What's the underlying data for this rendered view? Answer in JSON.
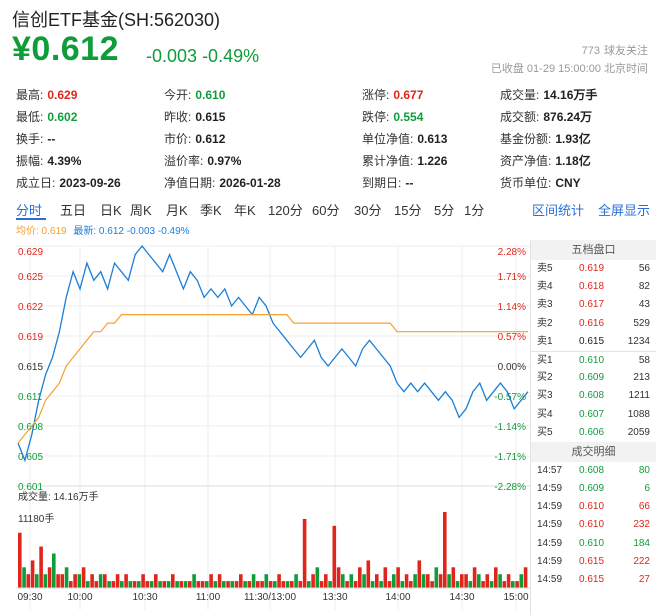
{
  "header": {
    "title": "信创ETF基金(SH:562030)",
    "price": "¥0.612",
    "change": "-0.003",
    "change_pct": "-0.49%",
    "followers_count": "773",
    "followers_label": "球友关注",
    "status": "已收盘  01-29 15:00:00 北京时间"
  },
  "stats": [
    [
      {
        "label": "最高:",
        "value": "0.629",
        "color": "red"
      },
      {
        "label": "今开:",
        "value": "0.610",
        "color": "green"
      },
      {
        "label": "涨停:",
        "value": "0.677",
        "color": "red"
      },
      {
        "label": "成交量:",
        "value": "14.16万手",
        "color": ""
      }
    ],
    [
      {
        "label": "最低:",
        "value": "0.602",
        "color": "green"
      },
      {
        "label": "昨收:",
        "value": "0.615",
        "color": ""
      },
      {
        "label": "跌停:",
        "value": "0.554",
        "color": "green"
      },
      {
        "label": "成交额:",
        "value": "876.24万",
        "color": ""
      }
    ],
    [
      {
        "label": "换手:",
        "value": "--",
        "color": ""
      },
      {
        "label": "市价:",
        "value": "0.612",
        "color": ""
      },
      {
        "label": "单位净值:",
        "value": "0.613",
        "color": ""
      },
      {
        "label": "基金份额:",
        "value": "1.93亿",
        "color": ""
      }
    ],
    [
      {
        "label": "振幅:",
        "value": "4.39%",
        "color": ""
      },
      {
        "label": "溢价率:",
        "value": "0.97%",
        "color": ""
      },
      {
        "label": "累计净值:",
        "value": "1.226",
        "color": ""
      },
      {
        "label": "资产净值:",
        "value": "1.18亿",
        "color": ""
      }
    ],
    [
      {
        "label": "成立日:",
        "value": "2023-09-26",
        "color": ""
      },
      {
        "label": "净值日期:",
        "value": "2026-01-28",
        "color": ""
      },
      {
        "label": "到期日:",
        "value": "--",
        "color": ""
      },
      {
        "label": "货币单位:",
        "value": "CNY",
        "color": ""
      }
    ]
  ],
  "tabs": [
    "分时",
    "五日",
    "日K",
    "周K",
    "月K",
    "季K",
    "年K",
    "120分",
    "60分",
    "30分",
    "15分",
    "5分",
    "1分"
  ],
  "tab_actions": [
    "区间统计",
    "全屏显示"
  ],
  "chart_info": {
    "avg_label": "均价: 0.619",
    "latest_label": "最新: 0.612 -0.003 -0.49%"
  },
  "chart_data": {
    "type": "line",
    "price_ticks": [
      "0.629",
      "0.625",
      "0.622",
      "0.619",
      "0.615",
      "0.611",
      "0.608",
      "0.605",
      "0.601"
    ],
    "pct_ticks": [
      "2.28%",
      "1.71%",
      "1.14%",
      "0.57%",
      "0.00%",
      "-0.57%",
      "-1.14%",
      "-1.71%",
      "-2.28%"
    ],
    "ylim": [
      0.601,
      0.629
    ],
    "x_labels": [
      "09:30",
      "10:00",
      "10:30",
      "11:00",
      "11:30/13:00",
      "13:30",
      "14:00",
      "14:30",
      "15:00"
    ],
    "series": [
      {
        "name": "最新",
        "color": "#1a7fd6",
        "values": [
          0.606,
          0.604,
          0.607,
          0.611,
          0.614,
          0.616,
          0.619,
          0.623,
          0.626,
          0.624,
          0.627,
          0.625,
          0.626,
          0.624,
          0.627,
          0.626,
          0.625,
          0.628,
          0.629,
          0.628,
          0.627,
          0.626,
          0.628,
          0.626,
          0.624,
          0.626,
          0.625,
          0.623,
          0.624,
          0.623,
          0.624,
          0.622,
          0.623,
          0.622,
          0.621,
          0.623,
          0.622,
          0.62,
          0.619,
          0.618,
          0.617,
          0.616,
          0.617,
          0.618,
          0.616,
          0.615,
          0.616,
          0.617,
          0.616,
          0.615,
          0.617,
          0.618,
          0.617,
          0.616,
          0.615,
          0.613,
          0.612,
          0.613,
          0.612,
          0.613,
          0.612,
          0.611,
          0.612,
          0.611,
          0.609,
          0.61,
          0.612,
          0.613,
          0.611,
          0.612,
          0.613,
          0.612,
          0.61,
          0.611,
          0.612
        ]
      },
      {
        "name": "均价",
        "color": "#f5a030",
        "values": [
          0.606,
          0.607,
          0.608,
          0.609,
          0.611,
          0.612,
          0.613,
          0.615,
          0.616,
          0.617,
          0.618,
          0.619,
          0.619,
          0.62,
          0.62,
          0.621,
          0.621,
          0.621,
          0.621,
          0.621,
          0.621,
          0.621,
          0.621,
          0.621,
          0.621,
          0.621,
          0.621,
          0.621,
          0.621,
          0.621,
          0.621,
          0.621,
          0.621,
          0.621,
          0.621,
          0.621,
          0.621,
          0.621,
          0.621,
          0.621,
          0.62,
          0.62,
          0.62,
          0.62,
          0.62,
          0.62,
          0.62,
          0.62,
          0.62,
          0.62,
          0.62,
          0.62,
          0.62,
          0.62,
          0.62,
          0.619,
          0.619,
          0.619,
          0.619,
          0.619,
          0.619,
          0.619,
          0.619,
          0.619,
          0.619,
          0.619,
          0.619,
          0.619,
          0.619,
          0.619,
          0.619,
          0.619,
          0.619,
          0.619,
          0.619
        ]
      }
    ],
    "volume": {
      "title": "成交量: 14.16万手",
      "max_label": "11180手",
      "up_color": "#e0261b",
      "down_color": "#0f9d3a",
      "values": [
        8,
        3,
        2,
        4,
        2,
        6,
        2,
        3,
        5,
        2,
        2,
        3,
        1,
        2,
        2,
        3,
        1,
        2,
        1,
        2,
        2,
        1,
        1,
        2,
        1,
        2,
        1,
        1,
        1,
        2,
        1,
        1,
        2,
        1,
        1,
        1,
        2,
        1,
        1,
        1,
        1,
        2,
        1,
        1,
        1,
        2,
        1,
        2,
        1,
        1,
        1,
        1,
        2,
        1,
        1,
        2,
        1,
        1,
        2,
        1,
        1,
        2,
        1,
        1,
        1,
        2,
        1,
        10,
        1,
        2,
        3,
        1,
        2,
        1,
        9,
        3,
        2,
        1,
        2,
        1,
        3,
        2,
        4,
        1,
        2,
        1,
        3,
        1,
        2,
        3,
        1,
        2,
        1,
        2,
        4,
        2,
        2,
        1,
        3,
        2,
        11,
        2,
        3,
        1,
        2,
        2,
        1,
        3,
        2,
        1,
        2,
        1,
        3,
        2,
        1,
        2,
        1,
        1,
        2,
        3
      ],
      "up": [
        true,
        false,
        true,
        true,
        false,
        true,
        false,
        true,
        false,
        true,
        true,
        false,
        true,
        true,
        false,
        true,
        false,
        true,
        true,
        false,
        true,
        false,
        true,
        true,
        false,
        true,
        false,
        true,
        false,
        true,
        true,
        false,
        true,
        false,
        true,
        false,
        true,
        false,
        true,
        false,
        true,
        false,
        true,
        true,
        false,
        true,
        false,
        true,
        false,
        true,
        false,
        true,
        true,
        false,
        true,
        false,
        true,
        true,
        false,
        true,
        false,
        true,
        true,
        false,
        true,
        false,
        true,
        true,
        false,
        true,
        false,
        true,
        true,
        false,
        true,
        true,
        false,
        true,
        false,
        true,
        true,
        false,
        true,
        false,
        true,
        false,
        true,
        true,
        false,
        true,
        false,
        true,
        true,
        false,
        true,
        false,
        true,
        true,
        false,
        true,
        true,
        false,
        true,
        false,
        true,
        true,
        false,
        true,
        false,
        true,
        true,
        false,
        true,
        false,
        true,
        true,
        false,
        true,
        false,
        true
      ]
    }
  },
  "order_book": {
    "title": "五档盘口",
    "rows": [
      {
        "label": "卖5",
        "price": "0.619",
        "vol": "56",
        "color": "red"
      },
      {
        "label": "卖4",
        "price": "0.618",
        "vol": "82",
        "color": "red"
      },
      {
        "label": "卖3",
        "price": "0.617",
        "vol": "43",
        "color": "red"
      },
      {
        "label": "卖2",
        "price": "0.616",
        "vol": "529",
        "color": "red"
      },
      {
        "label": "卖1",
        "price": "0.615",
        "vol": "1234",
        "color": ""
      },
      {
        "label": "买1",
        "price": "0.610",
        "vol": "58",
        "color": "green"
      },
      {
        "label": "买2",
        "price": "0.609",
        "vol": "213",
        "color": "green"
      },
      {
        "label": "买3",
        "price": "0.608",
        "vol": "1211",
        "color": "green"
      },
      {
        "label": "买4",
        "price": "0.607",
        "vol": "1088",
        "color": "green"
      },
      {
        "label": "买5",
        "price": "0.606",
        "vol": "2059",
        "color": "green"
      }
    ]
  },
  "trades": {
    "title": "成交明细",
    "rows": [
      {
        "time": "14:57",
        "price": "0.608",
        "vol": "80",
        "color": "green"
      },
      {
        "time": "14:59",
        "price": "0.609",
        "vol": "6",
        "color": "green"
      },
      {
        "time": "14:59",
        "price": "0.610",
        "vol": "66",
        "color": "red"
      },
      {
        "time": "14:59",
        "price": "0.610",
        "vol": "232",
        "color": "red"
      },
      {
        "time": "14:59",
        "price": "0.610",
        "vol": "184",
        "color": "green"
      },
      {
        "time": "14:59",
        "price": "0.615",
        "vol": "222",
        "color": "red"
      },
      {
        "time": "14:59",
        "price": "0.615",
        "vol": "27",
        "color": "red"
      }
    ]
  }
}
